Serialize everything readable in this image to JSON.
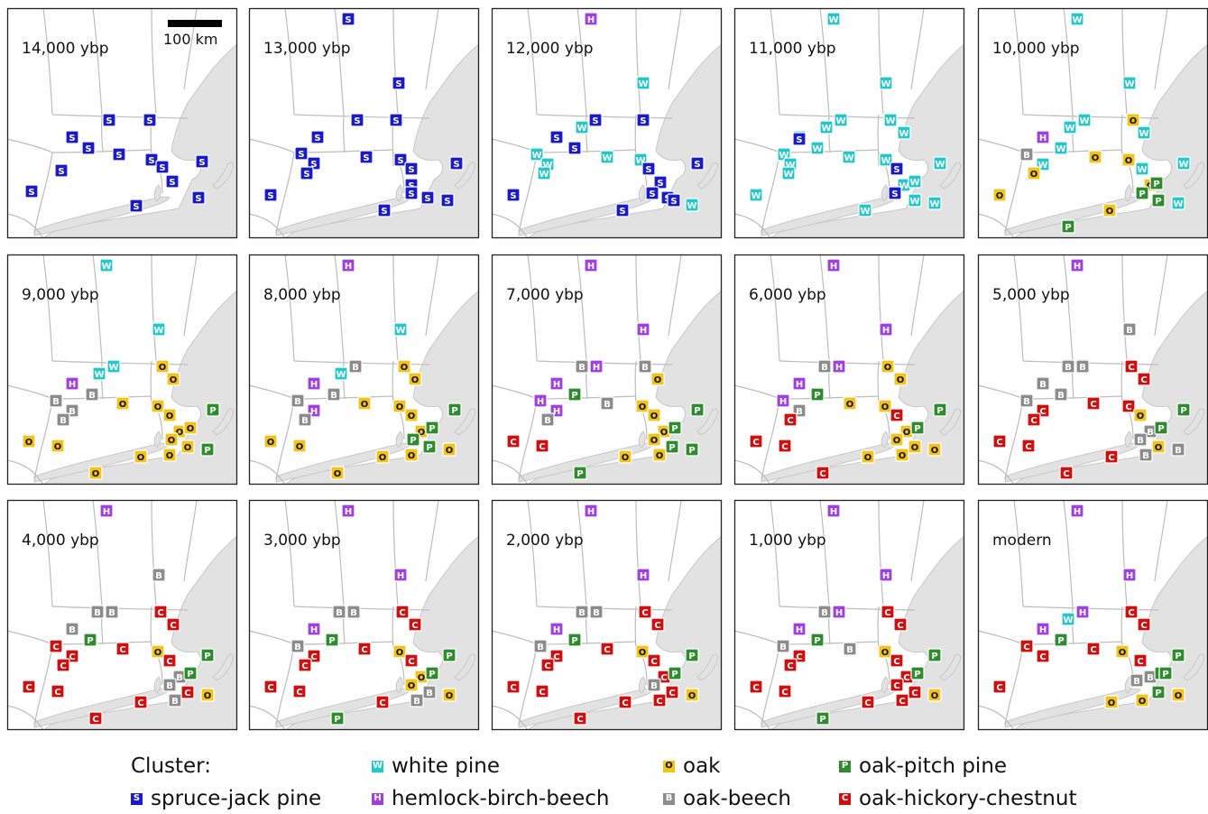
{
  "panels": [
    {
      "label": "14,000 ybp",
      "scale_label": "100 km"
    },
    {
      "label": "13,000 ybp"
    },
    {
      "label": "12,000 ybp"
    },
    {
      "label": "11,000 ybp"
    },
    {
      "label": "10,000 ybp"
    },
    {
      "label": "9,000 ybp"
    },
    {
      "label": "8,000 ybp"
    },
    {
      "label": "7,000 ybp"
    },
    {
      "label": "6,000 ybp"
    },
    {
      "label": "5,000 ybp"
    },
    {
      "label": "4,000 ybp"
    },
    {
      "label": "3,000 ybp"
    },
    {
      "label": "2,000 ybp"
    },
    {
      "label": "1,000 ybp"
    },
    {
      "label": "modern"
    }
  ],
  "legend": {
    "title": "Cluster:",
    "items": [
      {
        "code": "S",
        "label": "spruce-jack pine",
        "color": "#1a1ac8"
      },
      {
        "code": "W",
        "label": "white pine",
        "color": "#22c8cc"
      },
      {
        "code": "H",
        "label": "hemlock-birch-beech",
        "color": "#a040e0"
      },
      {
        "code": "O",
        "label": "oak",
        "color": "#f2c418"
      },
      {
        "code": "B",
        "label": "oak-beech",
        "color": "#8c8c8c"
      },
      {
        "code": "P",
        "label": "oak-pitch pine",
        "color": "#2e8b2e"
      },
      {
        "code": "C",
        "label": "oak-hickory-chestnut",
        "color": "#d01010"
      }
    ]
  }
}
